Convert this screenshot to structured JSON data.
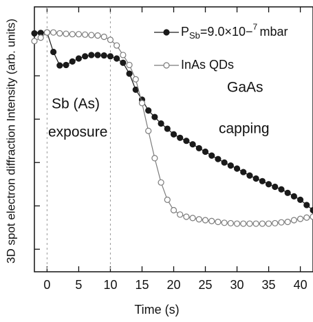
{
  "chart_data": {
    "type": "line",
    "x_label": "Time (s)",
    "y_label": "3D spot electron diffraction Intensity (arb. units)",
    "annotations": [
      "Sb (As)",
      "exposure",
      "GaAs",
      "capping"
    ],
    "vlines": [
      0,
      10
    ],
    "x": [
      -2,
      -1,
      0,
      1,
      2,
      3,
      4,
      5,
      6,
      7,
      8,
      9,
      10,
      11,
      12,
      13,
      14,
      15,
      16,
      17,
      18,
      19,
      20,
      21,
      22,
      23,
      24,
      25,
      26,
      27,
      28,
      29,
      30,
      31,
      32,
      33,
      34,
      35,
      36,
      37,
      38,
      39,
      40,
      41,
      42
    ],
    "series": [
      {
        "name": "PSb=9.0×10−7 mbar",
        "color": "#1a1a1a",
        "filled": true,
        "values": [
          5.98,
          5.99,
          6.0,
          5.55,
          5.24,
          5.25,
          5.33,
          5.4,
          5.45,
          5.48,
          5.48,
          5.47,
          5.45,
          5.4,
          5.3,
          5.05,
          4.68,
          4.45,
          4.2,
          4.05,
          3.9,
          3.78,
          3.65,
          3.57,
          3.5,
          3.42,
          3.33,
          3.25,
          3.16,
          3.08,
          3.0,
          2.93,
          2.86,
          2.78,
          2.7,
          2.63,
          2.57,
          2.5,
          2.44,
          2.38,
          2.3,
          2.22,
          2.14,
          2.02,
          1.9
        ]
      },
      {
        "name": "InAs QDs",
        "color": "#7a7a7a",
        "filled": false,
        "values": [
          5.8,
          5.88,
          6.0,
          6.0,
          5.98,
          5.97,
          5.96,
          5.96,
          5.95,
          5.94,
          5.93,
          5.9,
          5.83,
          5.7,
          5.48,
          5.25,
          4.92,
          4.37,
          3.73,
          3.1,
          2.54,
          2.14,
          1.9,
          1.8,
          1.75,
          1.72,
          1.69,
          1.67,
          1.65,
          1.63,
          1.61,
          1.6,
          1.59,
          1.59,
          1.59,
          1.59,
          1.59,
          1.59,
          1.6,
          1.62,
          1.63,
          1.67,
          1.7,
          1.73,
          1.75
        ]
      }
    ],
    "xlim": [
      -2,
      42
    ],
    "xticks": [
      0,
      5,
      10,
      15,
      20,
      25,
      30,
      35,
      40
    ],
    "ylim": [
      0.48,
      6.59
    ],
    "yticks": [
      1,
      2,
      3,
      4,
      5,
      6
    ],
    "legend": "upper right"
  }
}
